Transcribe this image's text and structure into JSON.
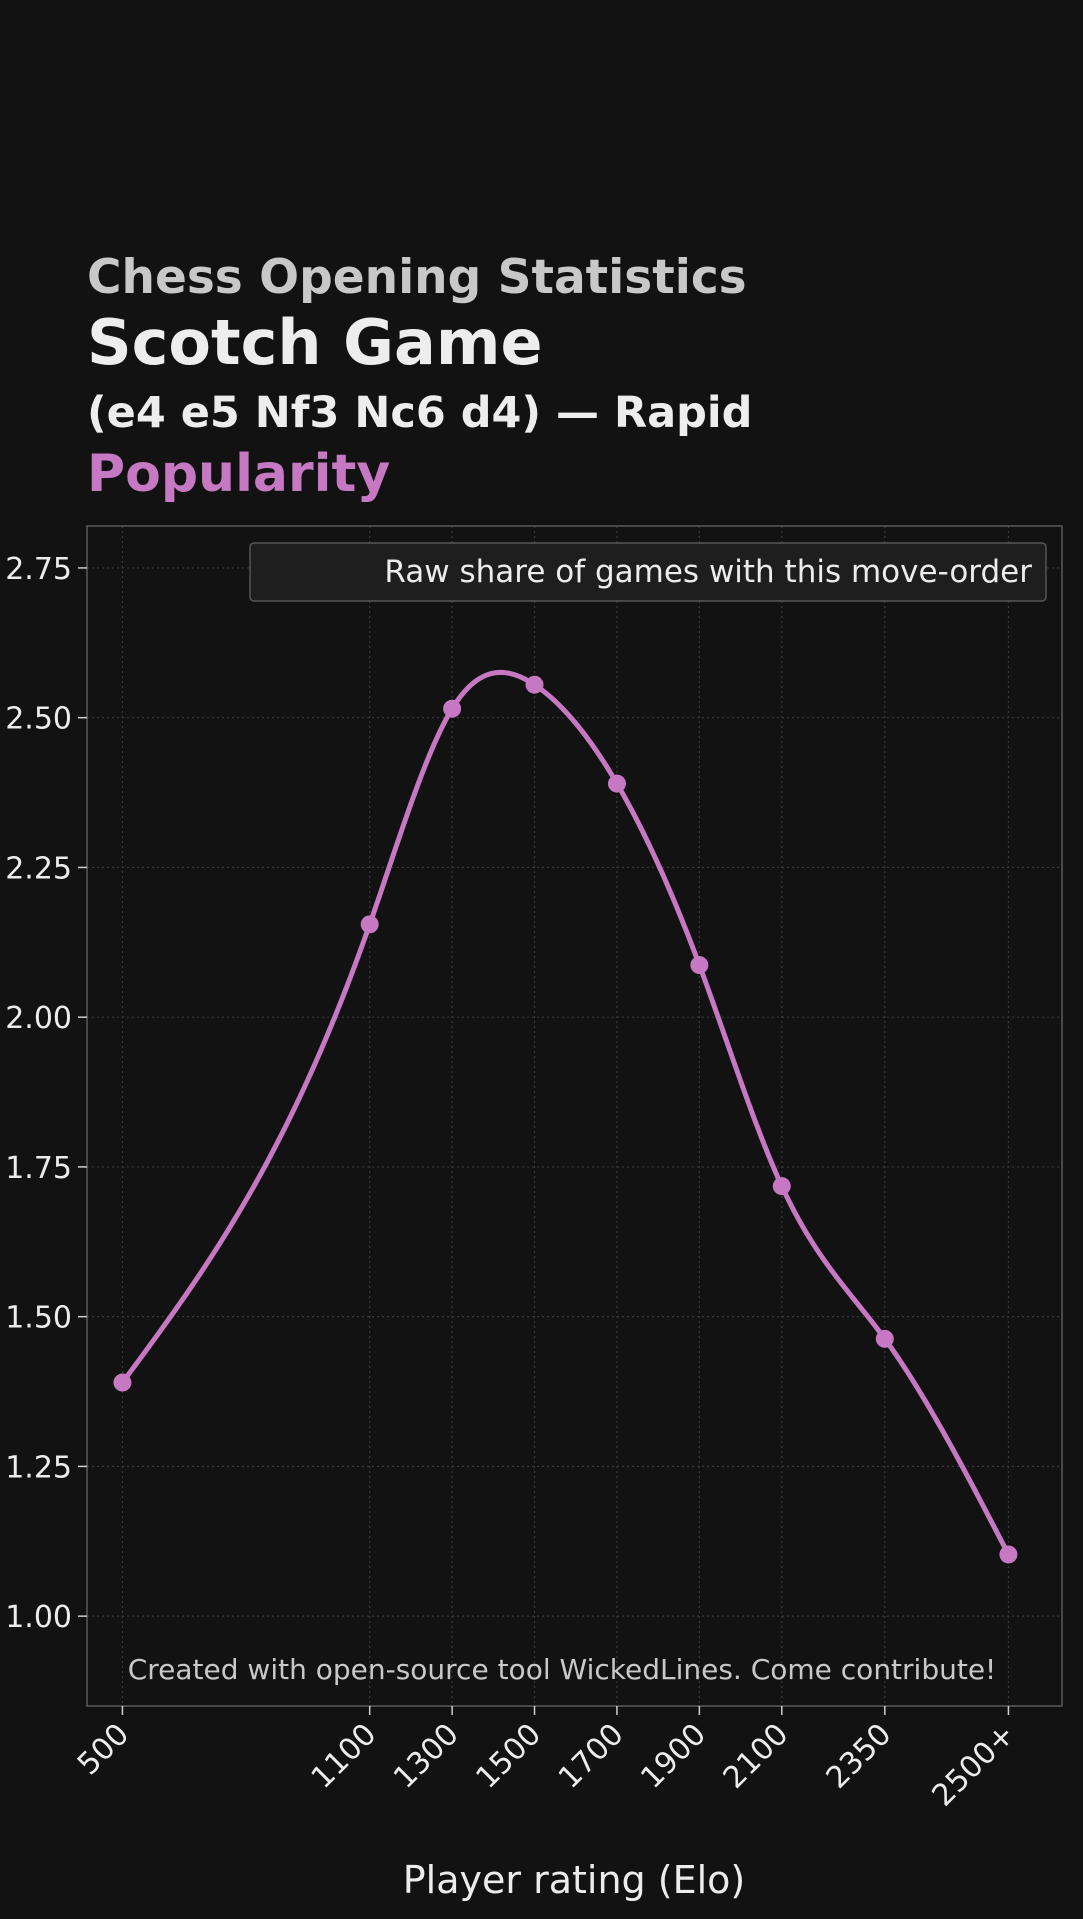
{
  "header": {
    "kicker": "Chess Opening Statistics",
    "opening": "Scotch Game",
    "subtitle": "(e4 e5 Nf3 Nc6 d4) — Rapid",
    "metric": "Popularity"
  },
  "colors": {
    "background": "#121213",
    "accent": "#c678c2",
    "grid": "#3a3a3a",
    "text": "#ececec"
  },
  "chart_data": {
    "type": "line",
    "x": [
      500,
      1100,
      1300,
      1500,
      1700,
      1900,
      2100,
      2350,
      2650
    ],
    "categories": [
      "500",
      "1100",
      "1300",
      "1500",
      "1700",
      "1900",
      "2100",
      "2350",
      "2500+"
    ],
    "series": [
      {
        "name": "Raw share of games with this move-order",
        "values": [
          1.39,
          2.155,
          2.515,
          2.555,
          2.39,
          2.087,
          1.718,
          1.463,
          1.103
        ]
      }
    ],
    "xlabel": "Player rating (Elo)",
    "ylabel": "",
    "ylim": [
      0.85,
      2.82
    ],
    "yticks": [
      "1.00",
      "1.25",
      "1.50",
      "1.75",
      "2.00",
      "2.25",
      "2.50",
      "2.75"
    ],
    "smooth": true,
    "grid": true,
    "legend_position": "top-right",
    "annotation": "Created with open-source tool WickedLines. Come contribute!"
  }
}
